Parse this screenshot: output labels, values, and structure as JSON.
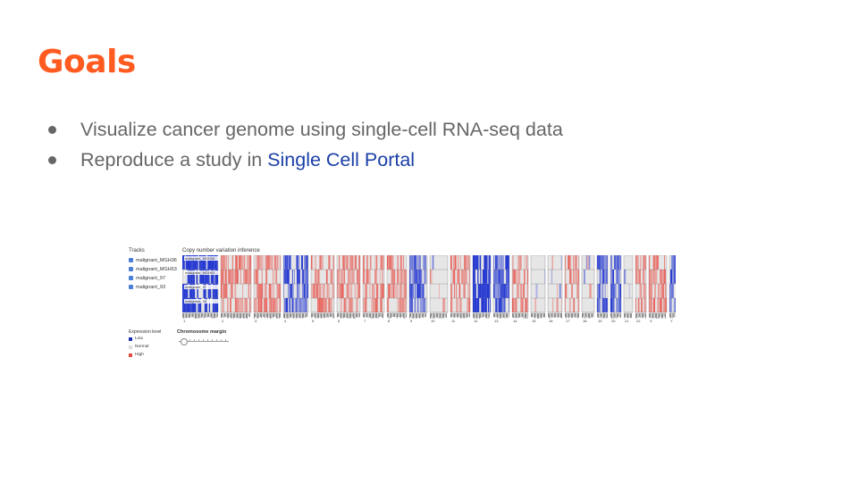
{
  "slide": {
    "title": "Goals",
    "bullets": [
      {
        "text": "Visualize cancer genome using single-cell RNA-seq data"
      },
      {
        "prefix": "Reproduce a study in ",
        "link": "Single Cell Portal"
      }
    ]
  },
  "figure": {
    "tracks_title": "Tracks",
    "heatmap_title": "Copy number variation inference",
    "tracks": [
      "malignant_MGH36",
      "malignant_MGH53",
      "malignant_97",
      "malignant_93"
    ],
    "panel_labels": [
      "malignant_MGH36",
      "malignant_MGH53",
      "malignant_97",
      "malignant_93"
    ],
    "legend_title": "Expression level",
    "legend": [
      {
        "label": "Low",
        "color": "#1a2fb0"
      },
      {
        "label": "Normal",
        "color": "#dddddd"
      },
      {
        "label": "High",
        "color": "#e04a3f"
      }
    ],
    "slider_label": "Chromosome margin",
    "chromosomes": [
      "1",
      "2",
      "3",
      "4",
      "5",
      "6",
      "7",
      "8",
      "9",
      "10",
      "11",
      "12",
      "13",
      "14",
      "15",
      "16",
      "17",
      "18",
      "19",
      "20",
      "21",
      "22",
      "X",
      "Y"
    ],
    "colors": {
      "low": "#1a2fd0",
      "normal": "#e6e6e6",
      "high": "#e8453c",
      "accent": "#ff5a1f"
    }
  }
}
